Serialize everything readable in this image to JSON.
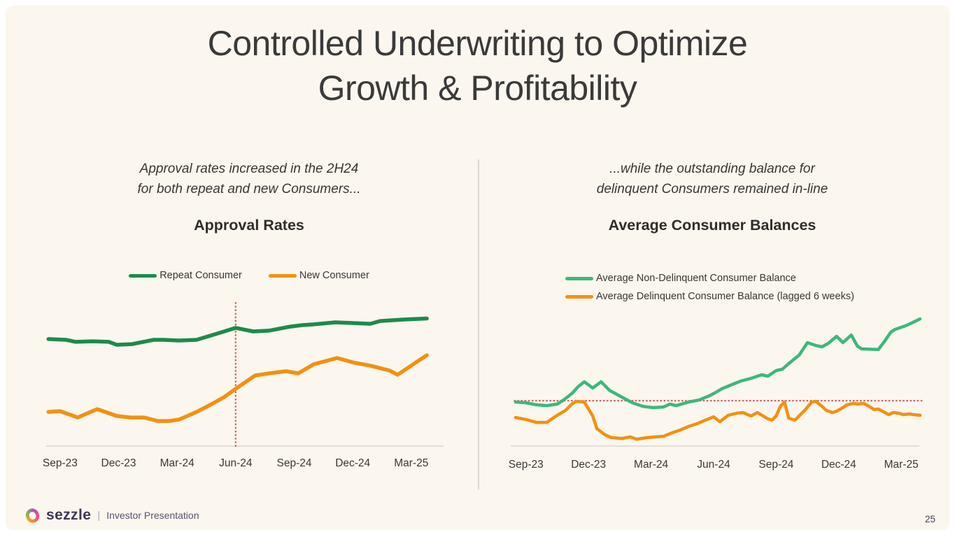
{
  "slide": {
    "title_line1": "Controlled Underwriting to Optimize",
    "title_line2": "Growth & Profitability",
    "page_number": "25"
  },
  "footer": {
    "logo": "sezzle-swirl-icon",
    "brand": "sezzle",
    "separator": "|",
    "label": "Investor Presentation"
  },
  "colors": {
    "background": "#fbf6ee",
    "canvas": "#ffffff",
    "title_text": "#3a3a3a",
    "axis": "#dcd7cd",
    "reference_red": "#e25d5d",
    "green_dark": "#1e8a4a",
    "green_light": "#3cb87c",
    "orange": "#f29111"
  },
  "chart_data": [
    {
      "type": "line",
      "subtitle_line1": "Approval rates increased in the 2H24",
      "subtitle_line2": "for both repeat and new Consumers...",
      "title": "Approval Rates",
      "legend_position": "top-center-row",
      "grid": false,
      "x_axis": {
        "unit": "months since Sep-23",
        "range": [
          -1.0,
          19.8
        ],
        "ticks": [
          {
            "label": "Sep-23",
            "month": 0
          },
          {
            "label": "Dec-23",
            "month": 3
          },
          {
            "label": "Mar-24",
            "month": 6
          },
          {
            "label": "Jun-24",
            "month": 9
          },
          {
            "label": "Sep-24",
            "month": 12
          },
          {
            "label": "Dec-24",
            "month": 15
          },
          {
            "label": "Mar-25",
            "month": 18
          }
        ]
      },
      "y_axis": {
        "labeled": false,
        "unit": "relative level, % of plot height (no scale shown)"
      },
      "reference_line": {
        "orientation": "vertical",
        "month": 9,
        "style": "dotted",
        "color": "#e25d5d"
      },
      "series": [
        {
          "name": "Repeat Consumer",
          "color": "#1e8a4a",
          "line_width": 5.5,
          "points": [
            [
              -0.6,
              72.9
            ],
            [
              0.3,
              72.4
            ],
            [
              0.8,
              71.0
            ],
            [
              1.7,
              71.4
            ],
            [
              2.5,
              71.0
            ],
            [
              2.9,
              69.0
            ],
            [
              3.7,
              69.5
            ],
            [
              4.8,
              72.4
            ],
            [
              5.3,
              72.4
            ],
            [
              6.1,
              71.9
            ],
            [
              7.0,
              72.4
            ],
            [
              8.3,
              77.6
            ],
            [
              9.0,
              80.5
            ],
            [
              9.9,
              78.1
            ],
            [
              10.7,
              78.6
            ],
            [
              11.8,
              81.4
            ],
            [
              12.4,
              82.4
            ],
            [
              13.0,
              82.9
            ],
            [
              14.1,
              84.3
            ],
            [
              15.0,
              83.8
            ],
            [
              15.9,
              83.3
            ],
            [
              16.4,
              85.2
            ],
            [
              17.6,
              86.2
            ],
            [
              18.8,
              86.9
            ]
          ]
        },
        {
          "name": "New Consumer",
          "color": "#f29111",
          "line_width": 5.5,
          "points": [
            [
              -0.6,
              23.3
            ],
            [
              0.0,
              23.8
            ],
            [
              0.9,
              19.5
            ],
            [
              1.9,
              25.2
            ],
            [
              2.9,
              20.5
            ],
            [
              3.6,
              19.5
            ],
            [
              4.3,
              19.5
            ],
            [
              5.0,
              17.1
            ],
            [
              5.6,
              17.1
            ],
            [
              6.1,
              18.1
            ],
            [
              7.0,
              23.3
            ],
            [
              7.7,
              28.1
            ],
            [
              8.4,
              33.3
            ],
            [
              9.0,
              39.0
            ],
            [
              10.0,
              48.1
            ],
            [
              10.7,
              49.5
            ],
            [
              11.6,
              51.0
            ],
            [
              12.2,
              49.5
            ],
            [
              13.0,
              55.7
            ],
            [
              14.2,
              60.0
            ],
            [
              15.1,
              56.7
            ],
            [
              15.9,
              54.8
            ],
            [
              16.9,
              51.4
            ],
            [
              17.3,
              48.6
            ],
            [
              18.8,
              61.9
            ]
          ]
        }
      ]
    },
    {
      "type": "line",
      "subtitle_line1": "...while the outstanding balance for",
      "subtitle_line2": "delinquent Consumers remained in-line",
      "title": "Average Consumer Balances",
      "legend_position": "top-left-column",
      "grid": false,
      "x_axis": {
        "unit": "months since Sep-23",
        "range": [
          -1.0,
          19.0
        ],
        "ticks": [
          {
            "label": "Sep-23",
            "month": 0
          },
          {
            "label": "Dec-23",
            "month": 3
          },
          {
            "label": "Mar-24",
            "month": 6
          },
          {
            "label": "Jun-24",
            "month": 9
          },
          {
            "label": "Sep-24",
            "month": 12
          },
          {
            "label": "Dec-24",
            "month": 15
          },
          {
            "label": "Mar-25",
            "month": 18
          }
        ]
      },
      "y_axis": {
        "labeled": false,
        "unit": "relative level, % of plot height (no scale shown)"
      },
      "reference_line": {
        "orientation": "horizontal",
        "level": 33.3,
        "style": "dotted",
        "color": "#e25d5d"
      },
      "series": [
        {
          "name": "Average Non-Delinquent Consumer Balance",
          "color": "#3cb87c",
          "line_width": 4.5,
          "points": [
            [
              -0.5,
              32.3
            ],
            [
              0.0,
              31.8
            ],
            [
              0.5,
              30.3
            ],
            [
              1.0,
              29.7
            ],
            [
              1.5,
              30.8
            ],
            [
              1.8,
              33.8
            ],
            [
              2.2,
              38.5
            ],
            [
              2.5,
              43.6
            ],
            [
              2.8,
              47.2
            ],
            [
              3.2,
              42.6
            ],
            [
              3.6,
              47.2
            ],
            [
              4.0,
              41.0
            ],
            [
              4.6,
              35.9
            ],
            [
              5.1,
              31.8
            ],
            [
              5.6,
              29.2
            ],
            [
              6.1,
              28.2
            ],
            [
              6.6,
              28.7
            ],
            [
              6.9,
              30.8
            ],
            [
              7.2,
              29.7
            ],
            [
              7.8,
              32.3
            ],
            [
              8.3,
              33.8
            ],
            [
              8.8,
              36.9
            ],
            [
              9.0,
              38.5
            ],
            [
              9.4,
              42.1
            ],
            [
              9.8,
              44.6
            ],
            [
              10.3,
              47.7
            ],
            [
              10.8,
              49.7
            ],
            [
              11.3,
              52.3
            ],
            [
              11.6,
              51.3
            ],
            [
              12.0,
              55.4
            ],
            [
              12.3,
              56.4
            ],
            [
              12.6,
              60.5
            ],
            [
              13.1,
              66.7
            ],
            [
              13.5,
              75.9
            ],
            [
              13.9,
              73.8
            ],
            [
              14.2,
              72.8
            ],
            [
              14.5,
              75.4
            ],
            [
              14.9,
              80.5
            ],
            [
              15.2,
              75.9
            ],
            [
              15.6,
              81.5
            ],
            [
              15.9,
              73.3
            ],
            [
              16.1,
              71.3
            ],
            [
              16.9,
              70.8
            ],
            [
              17.2,
              76.9
            ],
            [
              17.5,
              83.6
            ],
            [
              17.7,
              85.6
            ],
            [
              18.2,
              88.2
            ],
            [
              18.5,
              90.3
            ],
            [
              18.9,
              93.3
            ]
          ]
        },
        {
          "name": "Average Delinquent Consumer Balance (lagged 6 weeks)",
          "color": "#f29111",
          "line_width": 4.5,
          "points": [
            [
              -0.5,
              21.0
            ],
            [
              0.0,
              19.5
            ],
            [
              0.5,
              17.4
            ],
            [
              1.0,
              17.4
            ],
            [
              1.5,
              22.6
            ],
            [
              1.9,
              26.2
            ],
            [
              2.2,
              30.8
            ],
            [
              2.4,
              32.8
            ],
            [
              2.8,
              32.3
            ],
            [
              3.2,
              22.1
            ],
            [
              3.4,
              12.8
            ],
            [
              3.8,
              8.2
            ],
            [
              4.1,
              6.2
            ],
            [
              4.6,
              5.6
            ],
            [
              5.0,
              6.7
            ],
            [
              5.3,
              5.1
            ],
            [
              5.8,
              6.2
            ],
            [
              6.2,
              6.7
            ],
            [
              6.6,
              7.2
            ],
            [
              7.0,
              9.7
            ],
            [
              7.4,
              11.8
            ],
            [
              7.8,
              14.4
            ],
            [
              8.2,
              16.4
            ],
            [
              8.6,
              19.0
            ],
            [
              9.0,
              21.5
            ],
            [
              9.3,
              17.9
            ],
            [
              9.7,
              22.6
            ],
            [
              10.1,
              24.1
            ],
            [
              10.4,
              24.6
            ],
            [
              10.8,
              22.1
            ],
            [
              11.1,
              24.6
            ],
            [
              11.6,
              20.0
            ],
            [
              11.8,
              19.0
            ],
            [
              12.0,
              22.1
            ],
            [
              12.2,
              29.2
            ],
            [
              12.4,
              32.3
            ],
            [
              12.6,
              20.5
            ],
            [
              12.9,
              19.0
            ],
            [
              13.4,
              26.7
            ],
            [
              13.7,
              32.3
            ],
            [
              13.9,
              32.8
            ],
            [
              14.2,
              29.2
            ],
            [
              14.4,
              26.2
            ],
            [
              14.7,
              24.6
            ],
            [
              14.9,
              25.6
            ],
            [
              15.2,
              28.2
            ],
            [
              15.4,
              30.3
            ],
            [
              15.7,
              31.3
            ],
            [
              15.9,
              30.8
            ],
            [
              16.2,
              31.3
            ],
            [
              16.4,
              29.7
            ],
            [
              16.7,
              26.7
            ],
            [
              16.9,
              27.2
            ],
            [
              17.1,
              25.6
            ],
            [
              17.4,
              23.1
            ],
            [
              17.6,
              24.6
            ],
            [
              17.9,
              24.1
            ],
            [
              18.1,
              23.1
            ],
            [
              18.4,
              23.6
            ],
            [
              18.6,
              23.1
            ],
            [
              18.9,
              22.6
            ]
          ]
        }
      ]
    }
  ]
}
